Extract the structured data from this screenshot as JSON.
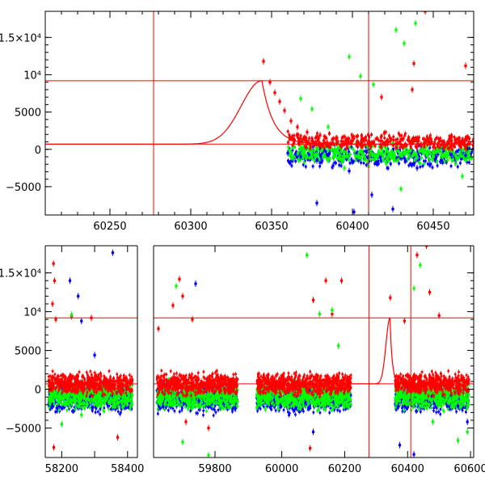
{
  "chart_data": [
    {
      "type": "scatter",
      "title": "",
      "xlabel": "",
      "ylabel": "",
      "xlim": [
        60210,
        60475
      ],
      "ylim": [
        -8800,
        18500
      ],
      "x_ticks": [
        60250,
        60300,
        60350,
        60400,
        60450
      ],
      "x_tick_labels": [
        "60250",
        "60300",
        "60350",
        "60400",
        "60450"
      ],
      "y_ticks": [
        -5000,
        0,
        5000,
        10000,
        15000
      ],
      "y_tick_labels": [
        "−5000",
        "0",
        "5000",
        "10⁴",
        "1.5×10⁴"
      ],
      "hlines": [
        700,
        9200
      ],
      "vlines": [
        60277,
        60410
      ],
      "model_curve": {
        "peak_x": 60344,
        "peak_y": 9200,
        "baseline_y": 700,
        "start_x": 60277,
        "end_x": 60360
      },
      "series": [
        {
          "color": "#ff0000",
          "points": [
            [
              60345,
              11800
            ],
            [
              60349,
              9000
            ],
            [
              60352,
              7600
            ],
            [
              60355,
              6400
            ],
            [
              60358,
              5200
            ],
            [
              60362,
              3800
            ],
            [
              60366,
              3000
            ],
            [
              60372,
              2300
            ],
            [
              60380,
              1900
            ],
            [
              60390,
              1500
            ],
            [
              60400,
              1100
            ],
            [
              60410,
              900
            ],
            [
              60420,
              700
            ],
            [
              60430,
              500
            ],
            [
              60440,
              400
            ],
            [
              60450,
              300
            ],
            [
              60460,
              200
            ],
            [
              60470,
              100
            ],
            [
              60445,
              18500
            ],
            [
              60438,
              11500
            ],
            [
              60437,
              8000
            ],
            [
              60470,
              11200
            ],
            [
              60418,
              7000
            ]
          ]
        },
        {
          "color": "#00ff00",
          "points": [
            [
              60368,
              6800
            ],
            [
              60375,
              5400
            ],
            [
              60385,
              3000
            ],
            [
              60398,
              12400
            ],
            [
              60405,
              9800
            ],
            [
              60413,
              8700
            ],
            [
              60427,
              16000
            ],
            [
              60432,
              14200
            ],
            [
              60439,
              16900
            ],
            [
              60410,
              -2300
            ],
            [
              60430,
              -5300
            ],
            [
              60468,
              -3600
            ],
            [
              60385,
              -1500
            ],
            [
              60395,
              -2500
            ],
            [
              60440,
              -1000
            ],
            [
              60455,
              -800
            ]
          ]
        },
        {
          "color": "#0000ff",
          "points": [
            [
              60360,
              -500
            ],
            [
              60368,
              -1000
            ],
            [
              60378,
              -1500
            ],
            [
              60388,
              -2200
            ],
            [
              60398,
              -2900
            ],
            [
              60412,
              -6100
            ],
            [
              60425,
              -8000
            ],
            [
              60440,
              -2500
            ],
            [
              60455,
              -1500
            ],
            [
              60470,
              -800
            ],
            [
              60378,
              -7200
            ],
            [
              60401,
              -8400
            ]
          ]
        }
      ]
    },
    {
      "type": "scatter",
      "title": "",
      "xlabel": "",
      "ylabel": "",
      "panels": [
        {
          "xlim": [
            58150,
            58430
          ],
          "x_ticks": [
            58200,
            58300,
            58400
          ],
          "x_tick_labels": [
            "58200",
            "",
            "58400"
          ]
        },
        {
          "xlim": [
            59610,
            59880
          ],
          "x_ticks": [
            59800
          ],
          "x_tick_labels": [
            "59800"
          ]
        },
        {
          "xlim": [
            59870,
            60610
          ],
          "x_ticks": [
            60000,
            60200,
            60400,
            60600
          ],
          "x_tick_labels": [
            "60000",
            "60200",
            "60400",
            "60600"
          ]
        }
      ],
      "ylim": [
        -8800,
        18500
      ],
      "y_ticks": [
        -5000,
        0,
        5000,
        10000,
        15000
      ],
      "y_tick_labels": [
        "−5000",
        "0",
        "5000",
        "10⁴",
        "1.5×10⁴"
      ],
      "hlines": [
        700,
        9200
      ],
      "vlines": [
        60277,
        60410
      ],
      "model_curve": {
        "peak_x": 60344,
        "peak_y": 9200,
        "baseline_y": 700,
        "start_x": 60277,
        "end_x": 60360
      },
      "series": [
        {
          "color": "#ff0000",
          "points": [
            [
              58175,
              16200
            ],
            [
              58178,
              14000
            ],
            [
              58172,
              11000
            ],
            [
              58182,
              9000
            ],
            [
              58230,
              9400
            ],
            [
              58290,
              9200
            ],
            [
              58370,
              -6200
            ],
            [
              58176,
              -7500
            ],
            [
              59625,
              7800
            ],
            [
              59670,
              10800
            ],
            [
              59690,
              14200
            ],
            [
              59700,
              12000
            ],
            [
              59730,
              9000
            ],
            [
              59710,
              -4200
            ],
            [
              59780,
              -5000
            ],
            [
              60100,
              11500
            ],
            [
              60140,
              14000
            ],
            [
              60160,
              9700
            ],
            [
              60190,
              14000
            ],
            [
              60090,
              -7600
            ],
            [
              60345,
              11800
            ],
            [
              60390,
              8800
            ],
            [
              60430,
              17300
            ],
            [
              60460,
              18500
            ],
            [
              60470,
              12500
            ],
            [
              60500,
              9500
            ]
          ]
        },
        {
          "color": "#00ff00",
          "points": [
            [
              58230,
              9600
            ],
            [
              58200,
              -4500
            ],
            [
              58260,
              -3300
            ],
            [
              59680,
              13300
            ],
            [
              59700,
              -6800
            ],
            [
              59780,
              -8500
            ],
            [
              60080,
              17300
            ],
            [
              60120,
              9700
            ],
            [
              60160,
              10200
            ],
            [
              60180,
              5600
            ],
            [
              60420,
              13000
            ],
            [
              60440,
              16000
            ],
            [
              60560,
              -6600
            ],
            [
              60590,
              -5500
            ],
            [
              60480,
              -4200
            ]
          ]
        },
        {
          "color": "#0000ff",
          "points": [
            [
              58355,
              17600
            ],
            [
              58225,
              14000
            ],
            [
              58250,
              12000
            ],
            [
              58260,
              8800
            ],
            [
              58300,
              4400
            ],
            [
              59740,
              13600
            ],
            [
              59750,
              -1500
            ],
            [
              60375,
              -7200
            ],
            [
              60420,
              -8400
            ],
            [
              60560,
              -2200
            ],
            [
              60590,
              -4200
            ],
            [
              60100,
              -5500
            ]
          ]
        }
      ]
    }
  ]
}
